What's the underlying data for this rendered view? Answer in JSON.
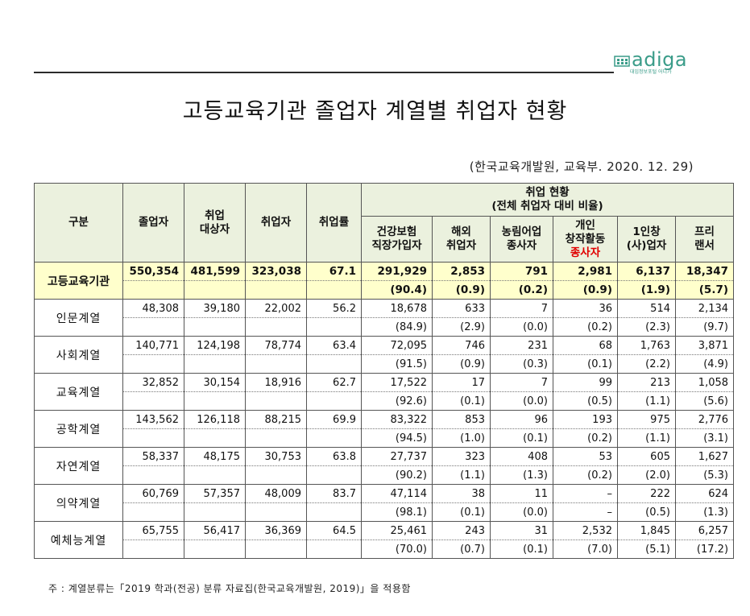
{
  "logo": {
    "text": "adiga",
    "sub": "대입정보포털 어디가"
  },
  "title": "고등교육기관 졸업자 계열별 취업자 현황",
  "source": "(한국교육개발원, 교육부. 2020. 12. 29)",
  "header": {
    "category": "구분",
    "graduates": "졸업자",
    "target_line1": "취업",
    "target_line2": "대상자",
    "employed": "취업자",
    "rate": "취업률",
    "status_line1": "취업 현황",
    "status_line2": "(전체 취업자 대비 비율)",
    "sub": [
      {
        "l1": "건강보험",
        "l2": "직장가입자",
        "l3": ""
      },
      {
        "l1": "해외",
        "l2": "취업자",
        "l3": ""
      },
      {
        "l1": "농림어업",
        "l2": "종사자",
        "l3": ""
      },
      {
        "l1": "개인",
        "l2": "창작활동",
        "l3": "종사자"
      },
      {
        "l1": "1인창",
        "l2": "(사)업자",
        "l3": ""
      },
      {
        "l1": "프리",
        "l2": "랜서",
        "l3": ""
      }
    ]
  },
  "rows": [
    {
      "name": "고등교육기관",
      "graduates": "550,354",
      "target": "481,599",
      "employed": "323,038",
      "rate": "67.1",
      "vals": [
        "291,929",
        "2,853",
        "791",
        "2,981",
        "6,137",
        "18,347"
      ],
      "pcts": [
        "(90.4)",
        "(0.9)",
        "(0.2)",
        "(0.9)",
        "(1.9)",
        "(5.7)"
      ]
    },
    {
      "name": "인문계열",
      "graduates": "48,308",
      "target": "39,180",
      "employed": "22,002",
      "rate": "56.2",
      "vals": [
        "18,678",
        "633",
        "7",
        "36",
        "514",
        "2,134"
      ],
      "pcts": [
        "(84.9)",
        "(2.9)",
        "(0.0)",
        "(0.2)",
        "(2.3)",
        "(9.7)"
      ]
    },
    {
      "name": "사회계열",
      "graduates": "140,771",
      "target": "124,198",
      "employed": "78,774",
      "rate": "63.4",
      "vals": [
        "72,095",
        "746",
        "231",
        "68",
        "1,763",
        "3,871"
      ],
      "pcts": [
        "(91.5)",
        "(0.9)",
        "(0.3)",
        "(0.1)",
        "(2.2)",
        "(4.9)"
      ]
    },
    {
      "name": "교육계열",
      "graduates": "32,852",
      "target": "30,154",
      "employed": "18,916",
      "rate": "62.7",
      "vals": [
        "17,522",
        "17",
        "7",
        "99",
        "213",
        "1,058"
      ],
      "pcts": [
        "(92.6)",
        "(0.1)",
        "(0.0)",
        "(0.5)",
        "(1.1)",
        "(5.6)"
      ]
    },
    {
      "name": "공학계열",
      "graduates": "143,562",
      "target": "126,118",
      "employed": "88,215",
      "rate": "69.9",
      "vals": [
        "83,322",
        "853",
        "96",
        "193",
        "975",
        "2,776"
      ],
      "pcts": [
        "(94.5)",
        "(1.0)",
        "(0.1)",
        "(0.2)",
        "(1.1)",
        "(3.1)"
      ]
    },
    {
      "name": "자연계열",
      "graduates": "58,337",
      "target": "48,175",
      "employed": "30,753",
      "rate": "63.8",
      "vals": [
        "27,737",
        "323",
        "408",
        "53",
        "605",
        "1,627"
      ],
      "pcts": [
        "(90.2)",
        "(1.1)",
        "(1.3)",
        "(0.2)",
        "(2.0)",
        "(5.3)"
      ]
    },
    {
      "name": "의약계열",
      "graduates": "60,769",
      "target": "57,357",
      "employed": "48,009",
      "rate": "83.7",
      "vals": [
        "47,114",
        "38",
        "11",
        "–",
        "222",
        "624"
      ],
      "pcts": [
        "(98.1)",
        "(0.1)",
        "(0.0)",
        "–",
        "(0.5)",
        "(1.3)"
      ]
    },
    {
      "name": "예체능계열",
      "graduates": "65,755",
      "target": "56,417",
      "employed": "36,369",
      "rate": "64.5",
      "vals": [
        "25,461",
        "243",
        "31",
        "2,532",
        "1,845",
        "6,257"
      ],
      "pcts": [
        "(70.0)",
        "(0.7)",
        "(0.1)",
        "(7.0)",
        "(5.1)",
        "(17.2)"
      ]
    }
  ],
  "footnote": "주 : 계열분류는「2019 학과(전공) 분류 자료집(한국교육개발원, 2019)」을 적용함",
  "colors": {
    "header_bg": "#ebf1de",
    "total_bg": "#ffffcc",
    "logo": "#3a9c89",
    "highlight": "#e00000"
  }
}
